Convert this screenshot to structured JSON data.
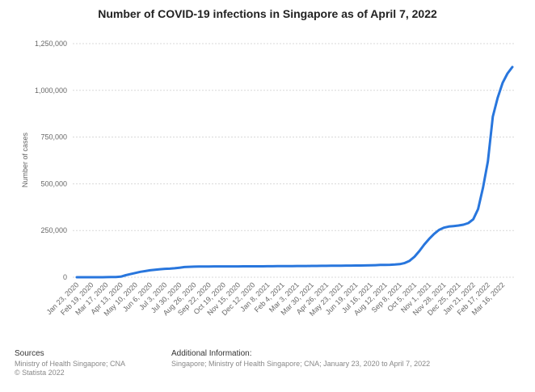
{
  "chart_data": {
    "type": "line",
    "title": "Number of COVID-19 infections in Singapore as of April 7, 2022",
    "y_label": "Number of cases",
    "categories": [
      "Jan 23, 2020",
      null,
      null,
      "Feb 19, 2020",
      null,
      null,
      "Mar 17, 2020",
      null,
      null,
      "Apr 13, 2020",
      null,
      null,
      "May 10, 2020",
      null,
      null,
      "Jun 6, 2020",
      null,
      null,
      "Jul 3, 2020",
      null,
      null,
      "Jul 30, 2020",
      null,
      null,
      "Aug 26, 2020",
      null,
      null,
      "Sep 22, 2020",
      null,
      null,
      "Oct 19, 2020",
      null,
      null,
      "Nov 15, 2020",
      null,
      null,
      "Dec 12, 2020",
      null,
      null,
      "Jan 8, 2021",
      null,
      null,
      "Feb 4, 2021",
      null,
      null,
      "Mar 3, 2021",
      null,
      null,
      "Mar 30, 2021",
      null,
      null,
      "Apr 26, 2021",
      null,
      null,
      "May 23, 2021",
      null,
      null,
      "Jun 19, 2021",
      null,
      null,
      "Jul 16, 2021",
      null,
      null,
      "Aug 12, 2021",
      null,
      null,
      "Sep 8, 2021",
      null,
      null,
      "Oct 5, 2021",
      null,
      null,
      "Nov 1, 2021",
      null,
      null,
      "Nov 28, 2021",
      null,
      null,
      "Dec 25, 2021",
      null,
      null,
      "Jan 21, 2022",
      null,
      null,
      "Feb 17, 2022",
      null,
      null,
      "Mar 16, 2022",
      null,
      null
    ],
    "series": [
      {
        "name": "Number of cases",
        "color": "#2876dd",
        "values": [
          0,
          0,
          0,
          100,
          100,
          200,
          300,
          700,
          1300,
          3000,
          11000,
          17000,
          23000,
          29000,
          33000,
          37000,
          40000,
          43000,
          44800,
          46000,
          48000,
          51000,
          54500,
          56000,
          56800,
          57000,
          57400,
          57600,
          57800,
          57900,
          57900,
          58000,
          58100,
          58100,
          58200,
          58200,
          58300,
          58400,
          58600,
          58800,
          59000,
          59400,
          59600,
          59800,
          59900,
          60000,
          60200,
          60300,
          60500,
          60700,
          60800,
          61000,
          61300,
          61600,
          61900,
          62200,
          62400,
          62600,
          62700,
          63000,
          63600,
          64600,
          65600,
          66200,
          66800,
          68000,
          70000,
          76000,
          88000,
          110000,
          140000,
          175000,
          205000,
          232000,
          253000,
          265000,
          271000,
          274000,
          277000,
          281000,
          290000,
          310000,
          365000,
          480000,
          620000,
          860000,
          960000,
          1040000,
          1090000,
          1125000
        ]
      }
    ],
    "ylim": [
      0,
      1250000
    ],
    "yticks": [
      0,
      {
        "value": 250000,
        "label": "250,000"
      },
      {
        "value": 500000,
        "label": "500,000"
      },
      {
        "value": 750000,
        "label": "750,000"
      },
      {
        "value": 1000000,
        "label": "1,000,000"
      },
      {
        "value": 1250000,
        "label": "1,250,000"
      }
    ],
    "grid": true
  },
  "footer": {
    "sources_title": "Sources",
    "sources": "Ministry of Health Singapore; CNA",
    "copyright": "© Statista 2022",
    "info_title": "Additional Information:",
    "info": "Singapore; Ministry of Health Singapore; CNA; January 23, 2020 to April 7, 2022"
  }
}
